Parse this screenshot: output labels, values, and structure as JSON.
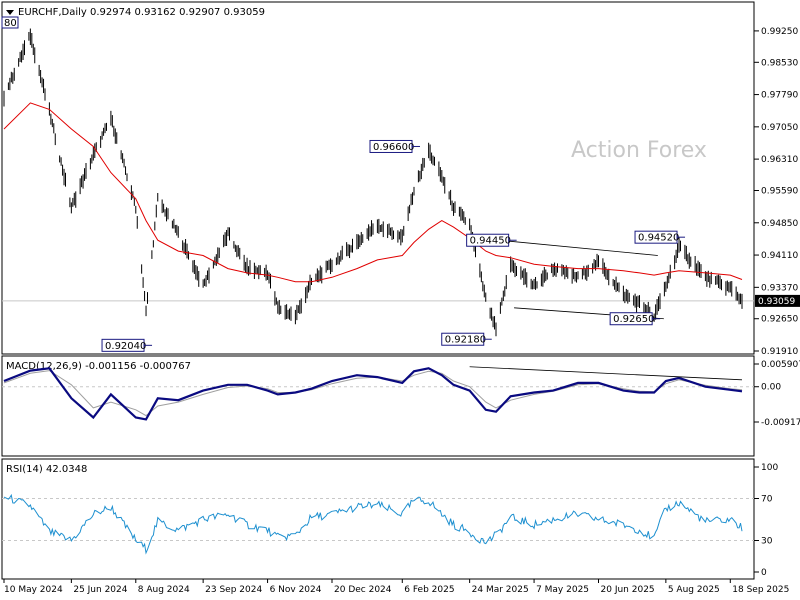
{
  "header": {
    "symbol": "EURCHF,Daily",
    "ohlc": "0.92974 0.93162 0.92907 0.93059",
    "corner_label": "80"
  },
  "watermark": "Action Forex",
  "colors": {
    "price": "#000000",
    "ma": "#e00000",
    "macd": "#0a0a80",
    "signal": "#a0a0a0",
    "rsi": "#1e90d0",
    "grid": "#c8c8c8",
    "box_border": "#1a1a80",
    "current_price_bg": "#000000",
    "current_price_fg": "#ffffff"
  },
  "chart_data": [
    {
      "type": "line",
      "name": "price",
      "ylim": [
        0.9191,
        0.995
      ],
      "price_ticks": [
        "0.99250",
        "0.98530",
        "0.97790",
        "0.97050",
        "0.96310",
        "0.95590",
        "0.94850",
        "0.94110",
        "0.93370",
        "0.92650",
        "0.91910"
      ],
      "current_price": "0.93059",
      "x_ticks": [
        "10 May 2024",
        "25 Jun 2024",
        "8 Aug 2024",
        "23 Sep 2024",
        "6 Nov 2024",
        "20 Dec 2024",
        "6 Feb 2025",
        "24 Mar 2025",
        "7 May 2025",
        "20 Jun 2025",
        "5 Aug 2025",
        "18 Sep 2025"
      ],
      "x": [
        "10 May 2024",
        "28 May 2024",
        "10 Jun 2024",
        "25 Jun 2024",
        "10 Jul 2024",
        "22 Jul 2024",
        "8 Aug 2024",
        "15 Aug 2024",
        "23 Aug 2024",
        "6 Sep 2024",
        "23 Sep 2024",
        "10 Oct 2024",
        "23 Oct 2024",
        "6 Nov 2024",
        "13 Nov 2024",
        "25 Nov 2024",
        "6 Dec 2024",
        "20 Dec 2024",
        "6 Jan 2025",
        "20 Jan 2025",
        "6 Feb 2025",
        "14 Feb 2025",
        "24 Feb 2025",
        "5 Mar 2025",
        "13 Mar 2025",
        "24 Mar 2025",
        "4 Apr 2025",
        "11 Apr 2025",
        "21 Apr 2025",
        "7 May 2025",
        "20 May 2025",
        "6 Jun 2025",
        "20 Jun 2025",
        "7 Jul 2025",
        "18 Jul 2025",
        "28 Jul 2025",
        "5 Aug 2025",
        "14 Aug 2025",
        "1 Sep 2025",
        "18 Sep 2025",
        "26 Sep 2025"
      ],
      "close": [
        0.9775,
        0.9915,
        0.974,
        0.952,
        0.964,
        0.9725,
        0.952,
        0.928,
        0.954,
        0.946,
        0.934,
        0.946,
        0.938,
        0.937,
        0.929,
        0.927,
        0.935,
        0.939,
        0.944,
        0.948,
        0.945,
        0.956,
        0.965,
        0.959,
        0.952,
        0.948,
        0.931,
        0.924,
        0.939,
        0.934,
        0.938,
        0.936,
        0.9395,
        0.932,
        0.93,
        0.927,
        0.934,
        0.943,
        0.936,
        0.9335,
        0.9306
      ],
      "ma": [
        0.97,
        0.976,
        0.9745,
        0.97,
        0.966,
        0.96,
        0.954,
        0.949,
        0.9445,
        0.942,
        0.941,
        0.938,
        0.937,
        0.9365,
        0.936,
        0.935,
        0.935,
        0.936,
        0.938,
        0.94,
        0.941,
        0.944,
        0.947,
        0.949,
        0.9475,
        0.945,
        0.942,
        0.941,
        0.9405,
        0.939,
        0.9385,
        0.938,
        0.938,
        0.9375,
        0.937,
        0.9365,
        0.937,
        0.9375,
        0.937,
        0.9365,
        0.9355
      ],
      "labels": [
        {
          "text": "0.96600",
          "x": "14 Feb 2025",
          "y": 0.966
        },
        {
          "text": "0.92040",
          "x": "15 Aug 2024",
          "y": 0.9204
        },
        {
          "text": "0.92180",
          "x": "4 Apr 2025",
          "y": 0.9218
        },
        {
          "text": "0.94450",
          "x": "21 Apr 2025",
          "y": 0.9445
        },
        {
          "text": "0.94520",
          "x": "14 Aug 2025",
          "y": 0.9452
        },
        {
          "text": "0.92650",
          "x": "28 Jul 2025",
          "y": 0.9265
        }
      ]
    },
    {
      "type": "line",
      "name": "MACD",
      "title": "MACD(12,26,9) -0.001156 -0.000767",
      "ylim": [
        -0.00917,
        0.00591
      ],
      "y_ticks": [
        "0.005907",
        "0.00",
        "-0.009175"
      ],
      "x": [
        "10 May 2024",
        "28 May 2024",
        "10 Jun 2024",
        "25 Jun 2024",
        "10 Jul 2024",
        "22 Jul 2024",
        "8 Aug 2024",
        "15 Aug 2024",
        "23 Aug 2024",
        "6 Sep 2024",
        "23 Sep 2024",
        "10 Oct 2024",
        "23 Oct 2024",
        "6 Nov 2024",
        "13 Nov 2024",
        "25 Nov 2024",
        "6 Dec 2024",
        "20 Dec 2024",
        "6 Jan 2025",
        "20 Jan 2025",
        "6 Feb 2025",
        "14 Feb 2025",
        "24 Feb 2025",
        "5 Mar 2025",
        "13 Mar 2025",
        "24 Mar 2025",
        "4 Apr 2025",
        "11 Apr 2025",
        "21 Apr 2025",
        "7 May 2025",
        "20 May 2025",
        "6 Jun 2025",
        "20 Jun 2025",
        "7 Jul 2025",
        "18 Jul 2025",
        "28 Jul 2025",
        "5 Aug 2025",
        "14 Aug 2025",
        "1 Sep 2025",
        "18 Sep 2025",
        "26 Sep 2025"
      ],
      "macd": [
        0.0015,
        0.0042,
        0.0048,
        -0.003,
        -0.008,
        -0.002,
        -0.008,
        -0.0085,
        -0.003,
        -0.0035,
        -0.001,
        0.0005,
        0.0005,
        -0.001,
        -0.002,
        -0.0015,
        -0.0005,
        0.0015,
        0.003,
        0.0025,
        0.001,
        0.004,
        0.0048,
        0.003,
        0.0005,
        -0.001,
        -0.006,
        -0.0065,
        -0.0025,
        -0.0015,
        -0.001,
        0.001,
        0.001,
        -0.001,
        -0.0015,
        -0.0015,
        0.0015,
        0.0023,
        0.0,
        -0.0008,
        -0.0012
      ],
      "signal": [
        0.001,
        0.0035,
        0.0042,
        0.0005,
        -0.0055,
        -0.004,
        -0.006,
        -0.0075,
        -0.005,
        -0.004,
        -0.002,
        -0.0002,
        0.0002,
        -0.0005,
        -0.0015,
        -0.0015,
        -0.0008,
        0.0008,
        0.0022,
        0.0025,
        0.0015,
        0.003,
        0.004,
        0.0035,
        0.0015,
        0.0,
        -0.004,
        -0.0055,
        -0.0035,
        -0.002,
        -0.0012,
        0.0005,
        0.0008,
        -0.0005,
        -0.0012,
        -0.0013,
        0.0008,
        0.0018,
        0.0004,
        -0.0005,
        -0.0008
      ],
      "trendline": [
        {
          "x": "24 Mar 2025",
          "y": 0.0052
        },
        {
          "x": "26 Sep 2025",
          "y": 0.0018
        }
      ]
    },
    {
      "type": "line",
      "name": "RSI",
      "title": "RSI(14) 42.0348",
      "ylim": [
        0,
        100
      ],
      "y_ticks": [
        "100",
        "70",
        "30",
        "0"
      ],
      "x": [
        "10 May 2024",
        "28 May 2024",
        "10 Jun 2024",
        "25 Jun 2024",
        "10 Jul 2024",
        "22 Jul 2024",
        "8 Aug 2024",
        "15 Aug 2024",
        "23 Aug 2024",
        "6 Sep 2024",
        "23 Sep 2024",
        "10 Oct 2024",
        "23 Oct 2024",
        "6 Nov 2024",
        "13 Nov 2024",
        "25 Nov 2024",
        "6 Dec 2024",
        "20 Dec 2024",
        "6 Jan 2025",
        "20 Jan 2025",
        "6 Feb 2025",
        "14 Feb 2025",
        "24 Feb 2025",
        "5 Mar 2025",
        "13 Mar 2025",
        "24 Mar 2025",
        "4 Apr 2025",
        "11 Apr 2025",
        "21 Apr 2025",
        "7 May 2025",
        "20 May 2025",
        "6 Jun 2025",
        "20 Jun 2025",
        "7 Jul 2025",
        "18 Jul 2025",
        "28 Jul 2025",
        "5 Aug 2025",
        "14 Aug 2025",
        "1 Sep 2025",
        "18 Sep 2025",
        "26 Sep 2025"
      ],
      "values": [
        72,
        63,
        38,
        30,
        55,
        62,
        30,
        22,
        48,
        40,
        50,
        55,
        45,
        40,
        33,
        35,
        52,
        55,
        62,
        64,
        55,
        68,
        68,
        55,
        45,
        38,
        28,
        35,
        52,
        45,
        50,
        55,
        50,
        45,
        40,
        32,
        60,
        66,
        48,
        50,
        42
      ]
    }
  ]
}
